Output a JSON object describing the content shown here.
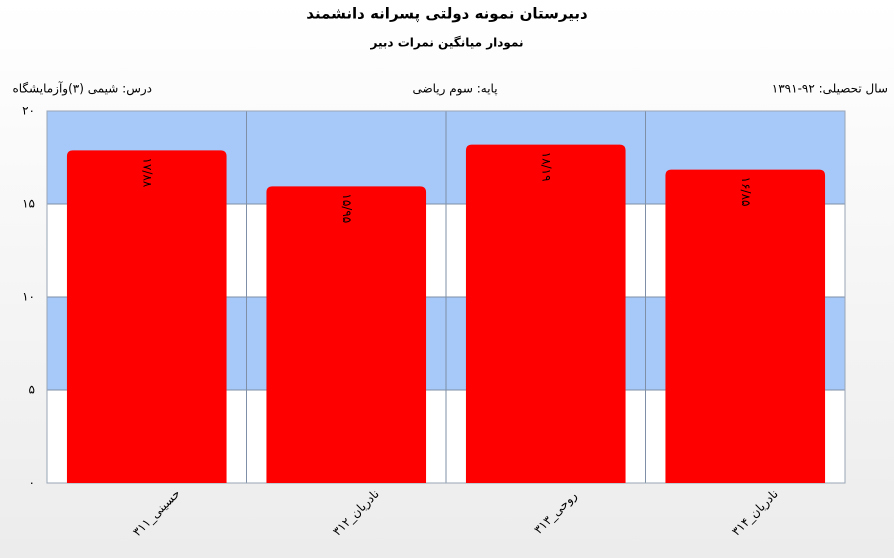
{
  "chart_data": {
    "type": "bar",
    "title": "دبیرستان  نمونه دولتی پسرانه دانشمند",
    "subtitle": "نمودار میانگین نمرات دبیر",
    "header": {
      "year": "سال تحصیلی: ۹۲-۱۳۹۱",
      "grade": "پایه: سوم ریاضی",
      "course": "درس: شیمی (۳)وآزمایشگاه"
    },
    "categories": [
      "حسینی_۳۱۱",
      "نادریان_۳۱۲",
      "روحی_۳۱۳",
      "نادریان_۳۱۴"
    ],
    "values": [
      17.88,
      15.95,
      18.19,
      16.85
    ],
    "value_labels": [
      "۱۷/۸۸",
      "۱۵/۹۵",
      "۱۸/۱۹",
      "۱۶/۸۵"
    ],
    "color": "#ff0000",
    "band_colors": [
      "#ffffff",
      "#a6c9f9"
    ],
    "ylim": [
      0,
      20
    ],
    "yticks": [
      {
        "value": 0,
        "label": "۰"
      },
      {
        "value": 5,
        "label": "۵"
      },
      {
        "value": 10,
        "label": "۱۰"
      },
      {
        "value": 15,
        "label": "۱۵"
      },
      {
        "value": 20,
        "label": "۲۰"
      }
    ],
    "grid": true
  }
}
